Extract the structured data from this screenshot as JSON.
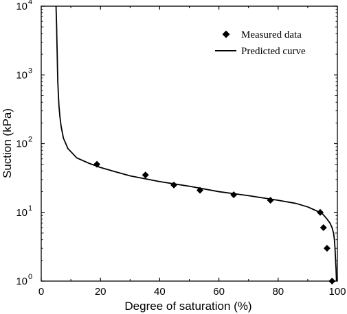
{
  "chart_data": {
    "type": "scatter",
    "xlabel": "Degree of saturation (%)",
    "ylabel": "Suction (kPa)",
    "xlim": [
      0,
      100
    ],
    "ylim": [
      1,
      10000
    ],
    "yscale": "log",
    "grid": false,
    "legend_position": "top-right",
    "x_ticks": [
      "0",
      "20",
      "40",
      "60",
      "80",
      "100"
    ],
    "y_ticks": [
      {
        "base": "10",
        "exp": "0"
      },
      {
        "base": "10",
        "exp": "1"
      },
      {
        "base": "10",
        "exp": "2"
      },
      {
        "base": "10",
        "exp": "3"
      },
      {
        "base": "10",
        "exp": "4"
      }
    ],
    "series": [
      {
        "name": "Measured data",
        "kind": "scatter",
        "marker": "diamond",
        "color": "#000000",
        "x": [
          18.8,
          35.2,
          44.8,
          53.6,
          65.0,
          77.4,
          94.2,
          95.3,
          96.5,
          98.2
        ],
        "y": [
          50,
          35,
          25,
          21,
          18,
          15,
          10,
          6,
          3,
          1
        ]
      },
      {
        "name": "Predicted curve",
        "kind": "line",
        "color": "#000000",
        "x": [
          5.0,
          5.1,
          5.2,
          5.3,
          5.4,
          5.5,
          5.6,
          5.8,
          6.0,
          6.3,
          6.7,
          7.5,
          9.0,
          12.0,
          16.0,
          20.0,
          25.0,
          30.0,
          40.0,
          50.0,
          60.0,
          70.0,
          80.0,
          86.0,
          90.0,
          93.0,
          95.0,
          96.5,
          97.5,
          98.2,
          98.7,
          99.0,
          99.2,
          99.4,
          99.55,
          99.7
        ],
        "y": [
          10000,
          7000,
          5000,
          3000,
          2000,
          1200,
          800,
          500,
          350,
          250,
          180,
          120,
          85,
          62,
          52,
          45,
          39,
          34,
          28,
          24,
          20,
          17.5,
          15,
          13.5,
          12,
          10.5,
          9.5,
          8,
          7,
          6,
          5,
          4,
          3,
          2,
          1.5,
          1
        ]
      }
    ]
  }
}
